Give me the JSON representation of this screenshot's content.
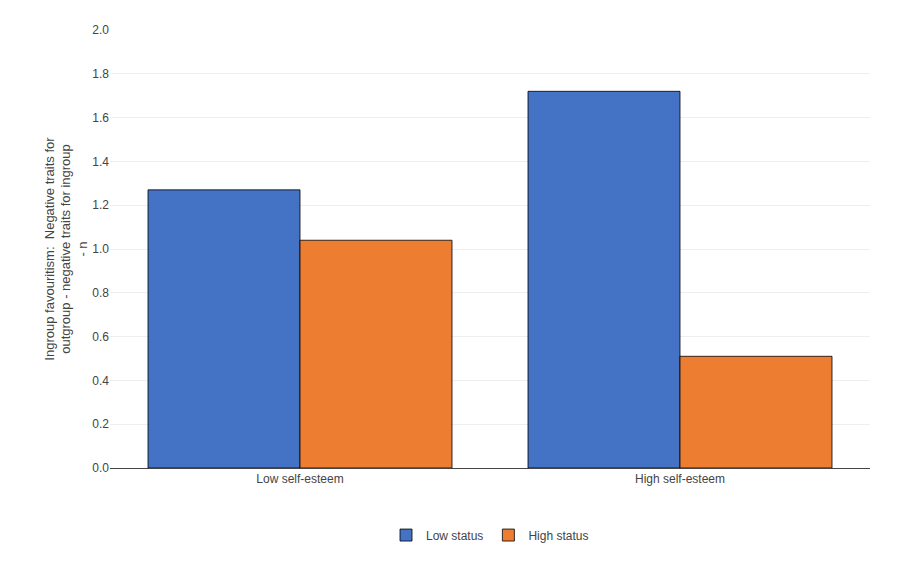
{
  "chart_data": {
    "type": "bar",
    "y_label": "Ingroup favouritism:  Negative traits for\noutgroup - negative traits for ingroup\n- n",
    "categories": [
      "Low self-esteem",
      "High self-esteem"
    ],
    "series": [
      {
        "name": "Low status",
        "color": "#4472C4",
        "values": [
          1.27,
          1.72
        ]
      },
      {
        "name": "High status",
        "color": "#ED7D31",
        "values": [
          1.04,
          0.51
        ]
      }
    ],
    "ylim": [
      0,
      2.0
    ],
    "yticks": [
      {
        "value": 0,
        "label": "0.0"
      },
      0.2,
      0.4,
      0.6,
      0.8,
      {
        "value": 1.0,
        "label": "1.0"
      },
      1.2,
      1.4,
      1.6,
      1.8,
      {
        "value": 2.0,
        "label": "2.0"
      }
    ],
    "grid": true,
    "legend": "bottom"
  }
}
